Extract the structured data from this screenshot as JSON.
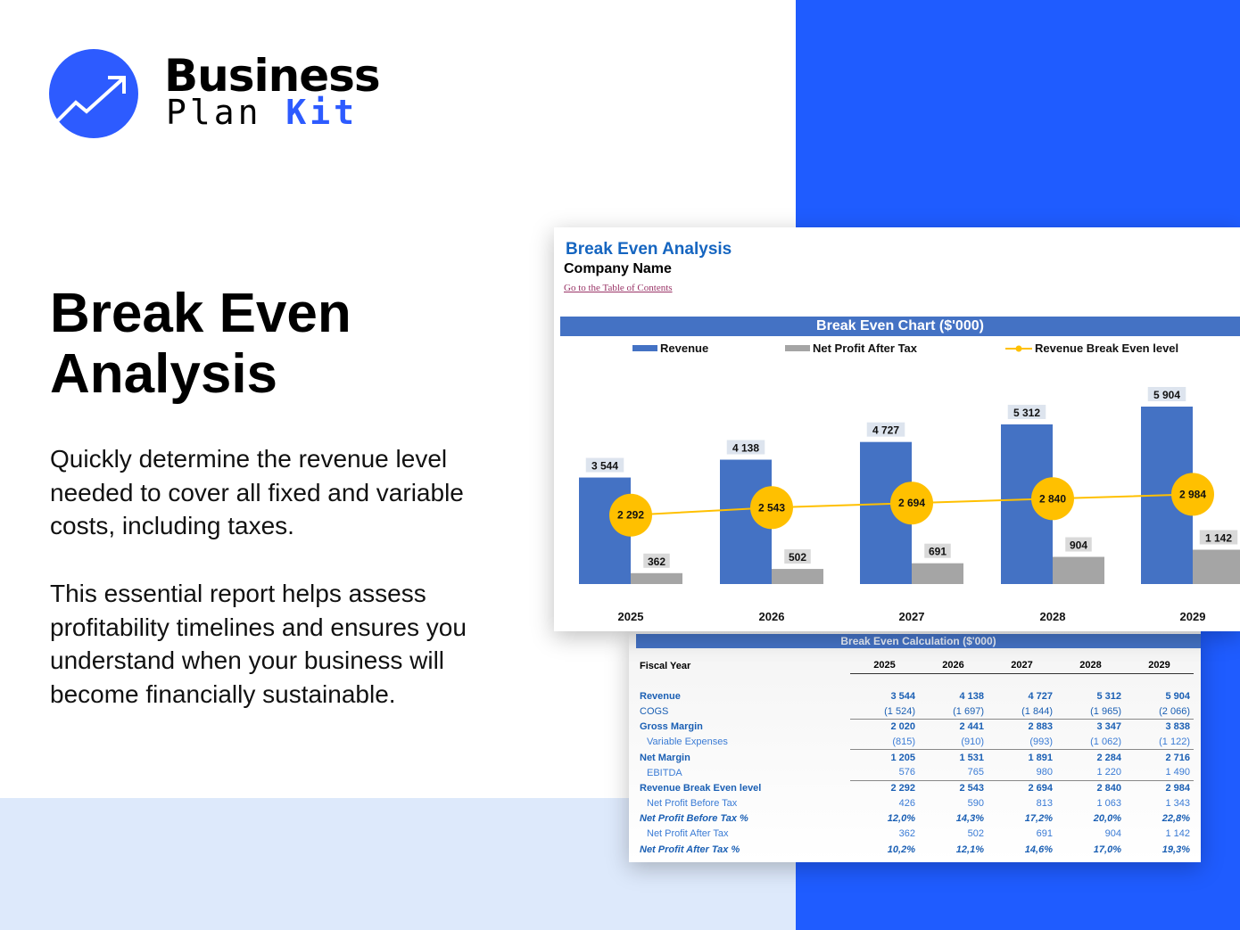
{
  "brand": {
    "line1": "Business",
    "line2a": "Plan",
    "line2b": "Kit",
    "colors": {
      "primary": "#1f5cff",
      "light": "#dde9fb"
    }
  },
  "hero": {
    "title": "Break Even Analysis",
    "para1": "Quickly determine the revenue level needed to cover all fixed and variable costs, including taxes.",
    "para2": "This essential report helps assess profitability timelines and ensures you understand when your business will become financially sustainable."
  },
  "sheet": {
    "title": "Break Even Analysis",
    "company": "Company Name",
    "toc_link": "Go to the Table of Contents"
  },
  "chart_data": {
    "type": "bar",
    "title": "Break Even Chart ($'000)",
    "categories": [
      "2025",
      "2026",
      "2027",
      "2028",
      "2029"
    ],
    "legend_placement": "top",
    "grid": false,
    "series": [
      {
        "name": "Revenue",
        "type": "bar",
        "color": "#4472c4",
        "values": [
          3544,
          4138,
          4727,
          5312,
          5904
        ],
        "labels": [
          "3 544",
          "4 138",
          "4 727",
          "5 312",
          "5 904"
        ]
      },
      {
        "name": "Net Profit After Tax",
        "type": "bar",
        "color": "#a5a5a5",
        "values": [
          362,
          502,
          691,
          904,
          1142
        ],
        "labels": [
          "362",
          "502",
          "691",
          "904",
          "1 142"
        ]
      },
      {
        "name": "Revenue Break Even level",
        "type": "line",
        "color": "#ffc000",
        "values": [
          2292,
          2543,
          2694,
          2840,
          2984
        ],
        "labels": [
          "2 292",
          "2 543",
          "2 694",
          "2 840",
          "2 984"
        ]
      }
    ]
  },
  "table": {
    "title": "Break Even Calculation ($'000)",
    "header": "Fiscal Year",
    "years": [
      "2025",
      "2026",
      "2027",
      "2028",
      "2029"
    ],
    "rows": [
      {
        "label": "Revenue",
        "values": [
          "3 544",
          "4 138",
          "4 727",
          "5 312",
          "5 904"
        ]
      },
      {
        "label": "COGS",
        "values": [
          "(1 524)",
          "(1 697)",
          "(1 844)",
          "(1 965)",
          "(2 066)"
        ]
      },
      {
        "label": "Gross Margin",
        "values": [
          "2 020",
          "2 441",
          "2 883",
          "3 347",
          "3 838"
        ]
      },
      {
        "label": "Variable Expenses",
        "values": [
          "(815)",
          "(910)",
          "(993)",
          "(1 062)",
          "(1 122)"
        ]
      },
      {
        "label": "Net Margin",
        "values": [
          "1 205",
          "1 531",
          "1 891",
          "2 284",
          "2 716"
        ]
      },
      {
        "label": "EBITDA",
        "values": [
          "576",
          "765",
          "980",
          "1 220",
          "1 490"
        ]
      },
      {
        "label": "Revenue Break Even level",
        "values": [
          "2 292",
          "2 543",
          "2 694",
          "2 840",
          "2 984"
        ]
      },
      {
        "label": "Net Profit Before Tax",
        "values": [
          "426",
          "590",
          "813",
          "1 063",
          "1 343"
        ]
      },
      {
        "label": "Net Profit Before Tax %",
        "values": [
          "12,0%",
          "14,3%",
          "17,2%",
          "20,0%",
          "22,8%"
        ]
      },
      {
        "label": "Net Profit After Tax",
        "values": [
          "362",
          "502",
          "691",
          "904",
          "1 142"
        ]
      },
      {
        "label": "Net Profit After Tax %",
        "values": [
          "10,2%",
          "12,1%",
          "14,6%",
          "17,0%",
          "19,3%"
        ]
      }
    ]
  }
}
